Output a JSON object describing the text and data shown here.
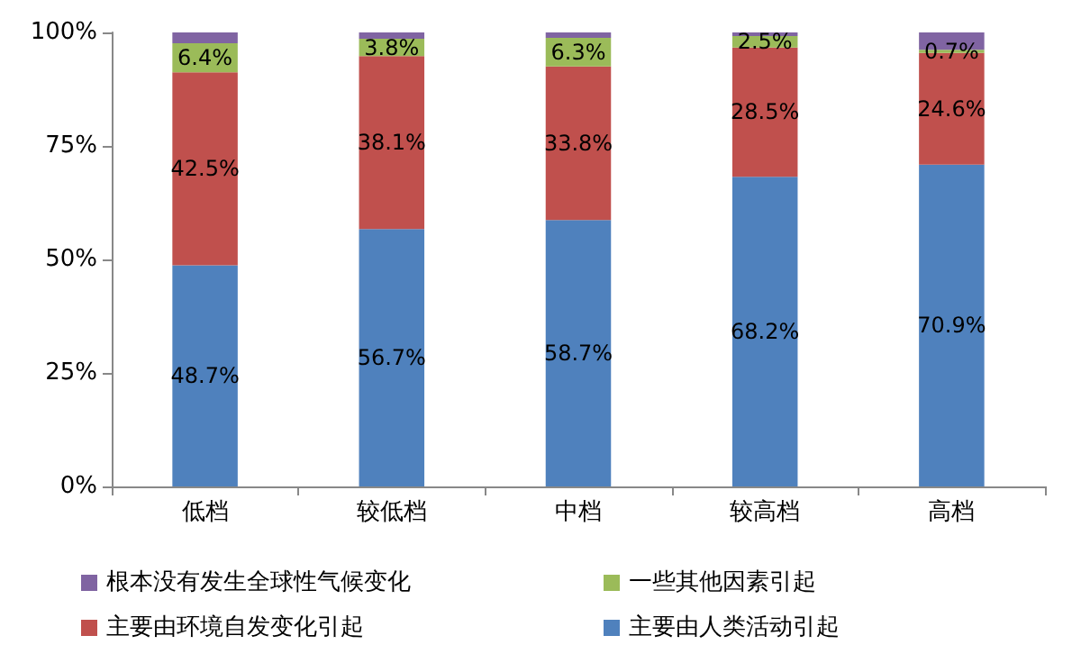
{
  "chart_data": {
    "type": "bar",
    "stacked": true,
    "categories": [
      "低档",
      "较低档",
      "中档",
      "较高档",
      "高档"
    ],
    "series": [
      {
        "name": "主要由人类活动引起",
        "color": "#4f81bd",
        "values": [
          48.7,
          56.7,
          58.7,
          68.2,
          70.9
        ],
        "value_labels": [
          "48.7%",
          "56.7%",
          "58.7%",
          "68.2%",
          "70.9%"
        ]
      },
      {
        "name": "主要由环境自发变化引起",
        "color": "#c0504d",
        "values": [
          42.5,
          38.1,
          33.8,
          28.5,
          24.6
        ],
        "value_labels": [
          "42.5%",
          "38.1%",
          "33.8%",
          "28.5%",
          "24.6%"
        ]
      },
      {
        "name": "一些其他因素引起",
        "color": "#9bbb59",
        "values": [
          6.4,
          3.8,
          6.3,
          2.5,
          0.7
        ],
        "value_labels": [
          "6.4%",
          "3.8%",
          "6.3%",
          "2.5%",
          "0.7%"
        ]
      },
      {
        "name": "根本没有发生全球性气候变化",
        "color": "#8064a2",
        "values": [
          2.4,
          1.4,
          1.2,
          0.8,
          3.8
        ]
      }
    ],
    "ylim": [
      0,
      100
    ],
    "yticks": [
      {
        "value": 0,
        "label": "0%"
      },
      {
        "value": 25,
        "label": "25%"
      },
      {
        "value": 50,
        "label": "50%"
      },
      {
        "value": 75,
        "label": "75%"
      },
      {
        "value": 100,
        "label": "100%"
      }
    ],
    "grid": false,
    "legend": "bottom"
  }
}
